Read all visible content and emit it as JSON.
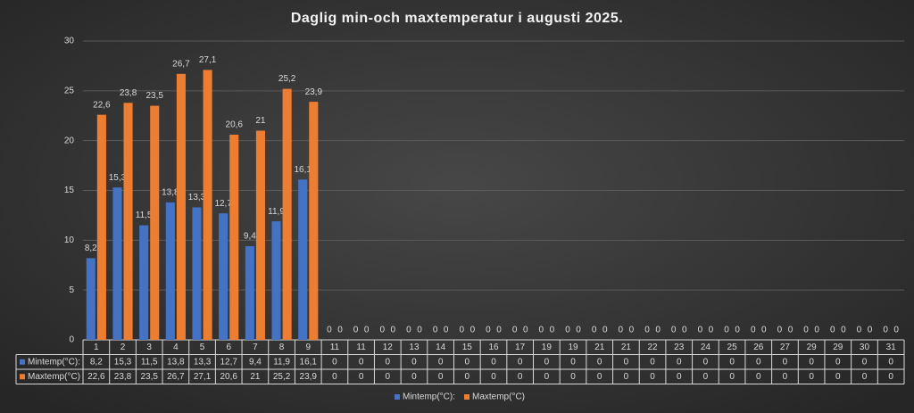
{
  "chart_data": {
    "type": "bar",
    "title": "Daglig min-och maxtemperatur i augusti 2025.",
    "categories": [
      "1",
      "2",
      "3",
      "4",
      "5",
      "6",
      "7",
      "8",
      "9",
      "11",
      "11",
      "12",
      "13",
      "14",
      "15",
      "16",
      "17",
      "19",
      "19",
      "21",
      "21",
      "22",
      "23",
      "24",
      "25",
      "26",
      "27",
      "29",
      "29",
      "30",
      "31"
    ],
    "series": [
      {
        "name": "Mintemp(°C):",
        "color": "#4472c4",
        "values": [
          8.2,
          15.3,
          11.5,
          13.8,
          13.3,
          12.7,
          9.4,
          11.9,
          16.1,
          0,
          0,
          0,
          0,
          0,
          0,
          0,
          0,
          0,
          0,
          0,
          0,
          0,
          0,
          0,
          0,
          0,
          0,
          0,
          0,
          0,
          0
        ],
        "value_labels": [
          "8,2",
          "15,3",
          "11,5",
          "13,8",
          "13,3",
          "12,7",
          "9,4",
          "11,9",
          "16,1",
          "0",
          "0",
          "0",
          "0",
          "0",
          "0",
          "0",
          "0",
          "0",
          "0",
          "0",
          "0",
          "0",
          "0",
          "0",
          "0",
          "0",
          "0",
          "0",
          "0",
          "0",
          "0"
        ]
      },
      {
        "name": "Maxtemp(°C)",
        "color": "#ed7d31",
        "values": [
          22.6,
          23.8,
          23.5,
          26.7,
          27.1,
          20.6,
          21,
          25.2,
          23.9,
          0,
          0,
          0,
          0,
          0,
          0,
          0,
          0,
          0,
          0,
          0,
          0,
          0,
          0,
          0,
          0,
          0,
          0,
          0,
          0,
          0,
          0
        ],
        "value_labels": [
          "22,6",
          "23,8",
          "23,5",
          "26,7",
          "27,1",
          "20,6",
          "21",
          "25,2",
          "23,9",
          "0",
          "0",
          "0",
          "0",
          "0",
          "0",
          "0",
          "0",
          "0",
          "0",
          "0",
          "0",
          "0",
          "0",
          "0",
          "0",
          "0",
          "0",
          "0",
          "0",
          "0",
          "0"
        ]
      }
    ],
    "ylim": [
      0,
      30
    ],
    "yticks": [
      0,
      5,
      10,
      15,
      20,
      25,
      30
    ],
    "grid": true,
    "legend": "bottom"
  }
}
